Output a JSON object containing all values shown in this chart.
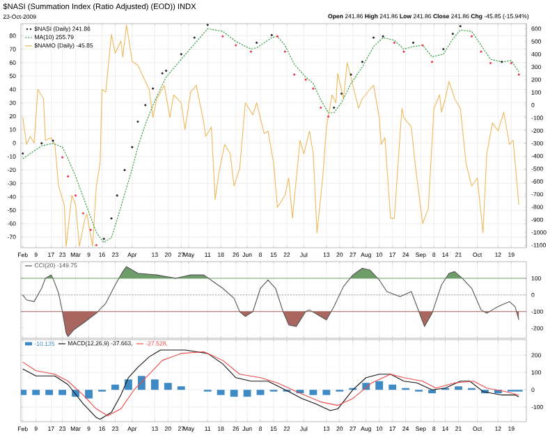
{
  "chart_data": [
    {
      "type": "line",
      "title": "$NASI (Summation Index (Ratio Adjusted) (EOD)) INDX",
      "subtitle": "23-Oct-2009",
      "annotations": [
        "**Open** 241.86 **High** 241.86 **Low** 241.86 **Close** 241.86 **Chg** -45.85 (-15.94%)"
      ],
      "xlim": [
        "2009-02-01",
        "2009-10-27"
      ],
      "xticks": [
        {
          "value": "2009-02-02",
          "label": "Feb"
        },
        {
          "value": "2009-02-09",
          "label": "9"
        },
        {
          "value": "2009-02-17",
          "label": "17"
        },
        {
          "value": "2009-02-23",
          "label": "23"
        },
        {
          "value": "2009-03-02",
          "label": "Mar"
        },
        {
          "value": "2009-03-09",
          "label": "9"
        },
        {
          "value": "2009-03-16",
          "label": "16"
        },
        {
          "value": "2009-03-23",
          "label": "23"
        },
        {
          "value": "2009-04-01",
          "label": "Apr"
        },
        {
          "value": "2009-04-13",
          "label": "13"
        },
        {
          "value": "2009-04-20",
          "label": "20"
        },
        {
          "value": "2009-04-27",
          "label": "27"
        },
        {
          "value": "2009-05-01",
          "label": "May"
        },
        {
          "value": "2009-05-11",
          "label": "11"
        },
        {
          "value": "2009-05-18",
          "label": "18"
        },
        {
          "value": "2009-05-26",
          "label": "26"
        },
        {
          "value": "2009-06-01",
          "label": "Jun"
        },
        {
          "value": "2009-06-08",
          "label": "8"
        },
        {
          "value": "2009-06-15",
          "label": "15"
        },
        {
          "value": "2009-06-22",
          "label": "22"
        },
        {
          "value": "2009-07-01",
          "label": "Jul"
        },
        {
          "value": "2009-07-13",
          "label": "13"
        },
        {
          "value": "2009-07-20",
          "label": "20"
        },
        {
          "value": "2009-07-27",
          "label": "27"
        },
        {
          "value": "2009-08-03",
          "label": "Aug"
        },
        {
          "value": "2009-08-10",
          "label": "10"
        },
        {
          "value": "2009-08-17",
          "label": "17"
        },
        {
          "value": "2009-08-24",
          "label": "24"
        },
        {
          "value": "2009-09-01",
          "label": "Sep"
        },
        {
          "value": "2009-09-08",
          "label": "8"
        },
        {
          "value": "2009-09-14",
          "label": "14"
        },
        {
          "value": "2009-09-21",
          "label": "21"
        },
        {
          "value": "2009-10-01",
          "label": "Oct"
        },
        {
          "value": "2009-10-12",
          "label": "12"
        },
        {
          "value": "2009-10-19",
          "label": "19"
        }
      ],
      "ylim": [
        -78,
        89
      ],
      "yticks": [
        -70,
        -60,
        -50,
        -40,
        -30,
        -20,
        -10,
        0,
        10,
        20,
        30,
        40,
        50,
        60,
        70,
        80
      ],
      "y2lim": [
        -1120,
        640
      ],
      "y2ticks": [
        -1100,
        -1000,
        -900,
        -800,
        -700,
        -600,
        -500,
        -400,
        -300,
        -200,
        -100,
        0,
        100,
        200,
        300,
        400,
        500,
        600
      ],
      "grid": true,
      "legend": "top left",
      "series": [
        {
          "name": "$NASI (Daily) 241.86",
          "type": "scatter",
          "marker": "circle",
          "axis": "y2",
          "color": "#222222",
          "x": [
            "2009-02-02",
            "2009-02-12",
            "2009-02-18",
            "2009-02-23",
            "2009-02-26",
            "2009-03-02",
            "2009-03-06",
            "2009-03-10",
            "2009-03-13",
            "2009-03-17",
            "2009-03-21",
            "2009-03-24",
            "2009-03-28",
            "2009-04-01",
            "2009-04-04",
            "2009-04-08",
            "2009-04-12",
            "2009-04-17",
            "2009-04-19",
            "2009-04-27",
            "2009-05-04",
            "2009-05-11",
            "2009-05-19",
            "2009-05-26",
            "2009-06-03",
            "2009-06-06",
            "2009-06-14",
            "2009-06-17",
            "2009-06-21",
            "2009-06-26",
            "2009-07-02",
            "2009-07-06",
            "2009-07-10",
            "2009-07-14",
            "2009-07-17",
            "2009-07-21",
            "2009-07-26",
            "2009-08-01",
            "2009-08-07",
            "2009-08-12",
            "2009-08-18",
            "2009-08-23",
            "2009-08-28",
            "2009-09-02",
            "2009-09-07",
            "2009-09-13",
            "2009-09-18",
            "2009-09-22",
            "2009-09-28",
            "2009-10-03",
            "2009-10-08",
            "2009-10-14",
            "2009-10-19",
            "2009-10-23"
          ],
          "values": [
            -380,
            -300,
            -280,
            -410,
            -560,
            -710,
            -850,
            -980,
            -1100,
            -1050,
            -890,
            -710,
            -510,
            -330,
            -130,
            0,
            130,
            250,
            270,
            400,
            530,
            630,
            540,
            470,
            420,
            490,
            550,
            540,
            420,
            240,
            200,
            130,
            -20,
            -90,
            -20,
            90,
            240,
            340,
            530,
            540,
            490,
            420,
            490,
            470,
            340,
            440,
            560,
            620,
            540,
            420,
            330,
            340,
            330,
            240
          ],
          "colors": [
            "#222222",
            "#222222",
            "#222222",
            "#e8324f",
            "#e8324f",
            "#e8324f",
            "#e8324f",
            "#e8324f",
            "#e8324f",
            "#222222",
            "#222222",
            "#222222",
            "#222222",
            "#222222",
            "#222222",
            "#222222",
            "#222222",
            "#222222",
            "#222222",
            "#222222",
            "#222222",
            "#222222",
            "#e8324f",
            "#e8324f",
            "#e8324f",
            "#222222",
            "#222222",
            "#e8324f",
            "#e8324f",
            "#e8324f",
            "#e8324f",
            "#e8324f",
            "#e8324f",
            "#e8324f",
            "#222222",
            "#222222",
            "#222222",
            "#222222",
            "#222222",
            "#222222",
            "#e8324f",
            "#e8324f",
            "#222222",
            "#e8324f",
            "#e8324f",
            "#222222",
            "#222222",
            "#222222",
            "#e8324f",
            "#e8324f",
            "#e8324f",
            "#222222",
            "#e8324f",
            "#e8324f"
          ]
        },
        {
          "name": "MA(10) 255.79",
          "type": "line",
          "line_style": "dashed",
          "axis": "y2",
          "color": "#2e9a3a",
          "x": [
            "2009-02-02",
            "2009-02-12",
            "2009-02-18",
            "2009-02-23",
            "2009-02-26",
            "2009-03-02",
            "2009-03-06",
            "2009-03-10",
            "2009-03-13",
            "2009-03-17",
            "2009-03-21",
            "2009-03-24",
            "2009-03-28",
            "2009-04-01",
            "2009-04-04",
            "2009-04-08",
            "2009-04-12",
            "2009-04-17",
            "2009-04-19",
            "2009-04-27",
            "2009-05-04",
            "2009-05-11",
            "2009-05-19",
            "2009-05-26",
            "2009-06-03",
            "2009-06-06",
            "2009-06-14",
            "2009-06-17",
            "2009-06-21",
            "2009-06-26",
            "2009-07-02",
            "2009-07-06",
            "2009-07-10",
            "2009-07-14",
            "2009-07-17",
            "2009-07-21",
            "2009-07-26",
            "2009-08-01",
            "2009-08-07",
            "2009-08-12",
            "2009-08-18",
            "2009-08-23",
            "2009-08-28",
            "2009-09-02",
            "2009-09-07",
            "2009-09-13",
            "2009-09-18",
            "2009-09-22",
            "2009-09-28",
            "2009-10-03",
            "2009-10-08",
            "2009-10-14",
            "2009-10-19",
            "2009-10-23"
          ],
          "values": [
            -420,
            -320,
            -300,
            -330,
            -420,
            -560,
            -720,
            -880,
            -1000,
            -1080,
            -1040,
            -900,
            -700,
            -500,
            -330,
            -150,
            0,
            160,
            220,
            360,
            480,
            600,
            580,
            500,
            440,
            450,
            530,
            540,
            470,
            320,
            220,
            170,
            40,
            -60,
            -60,
            20,
            170,
            300,
            460,
            530,
            510,
            440,
            460,
            470,
            380,
            400,
            520,
            590,
            580,
            470,
            360,
            340,
            350,
            260
          ]
        },
        {
          "name": "$NAMO (Daily) -45.85",
          "type": "line",
          "color": "#eeb85a",
          "x": [
            "2009-02-02",
            "2009-02-04",
            "2009-02-06",
            "2009-02-08",
            "2009-02-10",
            "2009-02-13",
            "2009-02-14",
            "2009-02-17",
            "2009-02-19",
            "2009-02-21",
            "2009-02-24",
            "2009-02-25",
            "2009-02-28",
            "2009-03-02",
            "2009-03-04",
            "2009-03-07",
            "2009-03-08",
            "2009-03-11",
            "2009-03-13",
            "2009-03-15",
            "2009-03-16",
            "2009-03-18",
            "2009-03-21",
            "2009-03-23",
            "2009-03-26",
            "2009-03-27",
            "2009-03-29",
            "2009-04-01",
            "2009-04-04",
            "2009-04-10",
            "2009-04-12",
            "2009-04-14",
            "2009-04-18",
            "2009-04-21",
            "2009-04-23",
            "2009-04-27",
            "2009-04-29",
            "2009-05-02",
            "2009-05-05",
            "2009-05-09",
            "2009-05-10",
            "2009-05-13",
            "2009-05-15",
            "2009-05-17",
            "2009-05-20",
            "2009-05-23",
            "2009-05-25",
            "2009-05-28",
            "2009-05-31",
            "2009-06-04",
            "2009-06-06",
            "2009-06-10",
            "2009-06-12",
            "2009-06-15",
            "2009-06-17",
            "2009-06-21",
            "2009-06-23",
            "2009-06-25",
            "2009-06-29",
            "2009-07-01",
            "2009-07-04",
            "2009-07-06",
            "2009-07-08",
            "2009-07-11",
            "2009-07-13",
            "2009-07-16",
            "2009-07-18",
            "2009-07-19",
            "2009-07-22",
            "2009-07-24",
            "2009-07-27",
            "2009-07-30",
            "2009-08-01",
            "2009-08-05",
            "2009-08-07",
            "2009-08-10",
            "2009-08-11",
            "2009-08-13",
            "2009-08-16",
            "2009-08-18",
            "2009-08-22",
            "2009-08-23",
            "2009-08-27",
            "2009-08-29",
            "2009-09-02",
            "2009-09-05",
            "2009-09-08",
            "2009-09-11",
            "2009-09-12",
            "2009-09-14",
            "2009-09-16",
            "2009-09-19",
            "2009-09-22",
            "2009-09-25",
            "2009-09-28",
            "2009-10-01",
            "2009-10-04",
            "2009-10-06",
            "2009-10-09",
            "2009-10-12",
            "2009-10-15",
            "2009-10-18",
            "2009-10-20",
            "2009-10-23"
          ],
          "values": [
            19,
            -1,
            5,
            0,
            40,
            33,
            2,
            4,
            -1,
            -32,
            -46,
            -77,
            -39,
            -46,
            -77,
            -56,
            -53,
            -77,
            -32,
            -15,
            40,
            38,
            81,
            67,
            76,
            64,
            88,
            61,
            58,
            40,
            19,
            33,
            43,
            19,
            36,
            30,
            10,
            38,
            43,
            15,
            5,
            12,
            -42,
            -22,
            -1,
            -8,
            -32,
            -19,
            30,
            21,
            30,
            7,
            9,
            -15,
            -48,
            -39,
            -26,
            -56,
            2,
            -8,
            9,
            -8,
            -67,
            -26,
            12,
            36,
            30,
            52,
            33,
            60,
            43,
            26,
            33,
            40,
            43,
            19,
            -1,
            4,
            -56,
            -56,
            26,
            19,
            12,
            -15,
            -60,
            -49,
            26,
            36,
            23,
            33,
            46,
            33,
            26,
            -15,
            -32,
            -26,
            -67,
            -8,
            15,
            9,
            23,
            -1,
            2,
            -46
          ]
        }
      ]
    },
    {
      "type": "line",
      "tick_labels": "y",
      "xlim": [
        "2009-02-01",
        "2009-10-27"
      ],
      "xticks": [
        {
          "value": "2009-02-02",
          "label": null
        },
        {
          "value": "2009-02-09",
          "label": null
        },
        {
          "value": "2009-02-17",
          "label": null
        },
        {
          "value": "2009-02-23",
          "label": null
        },
        {
          "value": "2009-03-02",
          "label": null
        },
        {
          "value": "2009-03-09",
          "label": null
        },
        {
          "value": "2009-03-16",
          "label": null
        },
        {
          "value": "2009-03-23",
          "label": null
        },
        {
          "value": "2009-04-01",
          "label": null
        },
        {
          "value": "2009-04-13",
          "label": null
        },
        {
          "value": "2009-04-20",
          "label": null
        },
        {
          "value": "2009-04-27",
          "label": null
        },
        {
          "value": "2009-05-01",
          "label": null
        },
        {
          "value": "2009-05-11",
          "label": null
        },
        {
          "value": "2009-05-18",
          "label": null
        },
        {
          "value": "2009-05-26",
          "label": null
        },
        {
          "value": "2009-06-01",
          "label": null
        },
        {
          "value": "2009-06-08",
          "label": null
        },
        {
          "value": "2009-06-15",
          "label": null
        },
        {
          "value": "2009-06-22",
          "label": null
        },
        {
          "value": "2009-07-01",
          "label": null
        },
        {
          "value": "2009-07-13",
          "label": null
        },
        {
          "value": "2009-07-20",
          "label": null
        },
        {
          "value": "2009-07-27",
          "label": null
        },
        {
          "value": "2009-08-03",
          "label": null
        },
        {
          "value": "2009-08-10",
          "label": null
        },
        {
          "value": "2009-08-17",
          "label": null
        },
        {
          "value": "2009-08-24",
          "label": null
        },
        {
          "value": "2009-09-01",
          "label": null
        },
        {
          "value": "2009-09-08",
          "label": null
        },
        {
          "value": "2009-09-14",
          "label": null
        },
        {
          "value": "2009-09-21",
          "label": null
        },
        {
          "value": "2009-10-01",
          "label": null
        },
        {
          "value": "2009-10-12",
          "label": null
        },
        {
          "value": "2009-10-19",
          "label": null
        }
      ],
      "ylim": [
        -260,
        200
      ],
      "yticks": [
        -200,
        -100,
        0,
        100
      ],
      "grid": "x",
      "legend": "top left",
      "ref_lines": [
        {
          "axis": "y",
          "value": 100,
          "color": "#6e9d69"
        },
        {
          "axis": "y",
          "value": -100,
          "color": "#a9665f"
        },
        {
          "axis": "y",
          "value": 0,
          "line_style": "dashed"
        }
      ],
      "series": [
        {
          "name": "CCI(20) -149.75",
          "color": "#555555",
          "x": [
            "2009-02-02",
            "2009-02-04",
            "2009-02-08",
            "2009-02-12",
            "2009-02-14",
            "2009-02-17",
            "2009-02-18",
            "2009-02-21",
            "2009-02-23",
            "2009-02-25",
            "2009-02-26",
            "2009-03-01",
            "2009-03-06",
            "2009-03-13",
            "2009-03-18",
            "2009-03-23",
            "2009-03-27",
            "2009-03-29",
            "2009-04-04",
            "2009-04-14",
            "2009-04-24",
            "2009-05-02",
            "2009-05-09",
            "2009-05-14",
            "2009-05-19",
            "2009-05-25",
            "2009-05-28",
            "2009-05-31",
            "2009-06-04",
            "2009-06-08",
            "2009-06-12",
            "2009-06-16",
            "2009-06-20",
            "2009-06-23",
            "2009-06-27",
            "2009-07-02",
            "2009-07-04",
            "2009-07-10",
            "2009-07-13",
            "2009-07-17",
            "2009-07-22",
            "2009-07-27",
            "2009-08-01",
            "2009-08-05",
            "2009-08-10",
            "2009-08-14",
            "2009-08-21",
            "2009-08-27",
            "2009-08-30",
            "2009-09-03",
            "2009-09-07",
            "2009-09-12",
            "2009-09-16",
            "2009-09-19",
            "2009-09-23",
            "2009-09-28",
            "2009-10-03",
            "2009-10-06",
            "2009-10-12",
            "2009-10-18",
            "2009-10-21",
            "2009-10-23"
          ],
          "values": [
            0,
            -30,
            -40,
            40,
            100,
            120,
            100,
            10,
            -100,
            -230,
            -250,
            -210,
            -170,
            -110,
            -50,
            60,
            140,
            170,
            130,
            120,
            100,
            120,
            120,
            80,
            40,
            -20,
            -100,
            -130,
            -100,
            40,
            90,
            40,
            -100,
            -180,
            -190,
            -100,
            -90,
            -130,
            -150,
            -70,
            50,
            120,
            160,
            150,
            90,
            20,
            -10,
            20,
            -70,
            -190,
            -110,
            60,
            130,
            140,
            100,
            40,
            -90,
            -110,
            -70,
            -40,
            -70,
            -150
          ]
        }
      ]
    },
    {
      "type": "line",
      "xlim": [
        "2009-02-01",
        "2009-10-27"
      ],
      "xticks": [
        {
          "value": "2009-02-02",
          "label": "Feb"
        },
        {
          "value": "2009-02-09",
          "label": "9"
        },
        {
          "value": "2009-02-17",
          "label": "17"
        },
        {
          "value": "2009-02-23",
          "label": "23"
        },
        {
          "value": "2009-03-02",
          "label": "Mar"
        },
        {
          "value": "2009-03-09",
          "label": "9"
        },
        {
          "value": "2009-03-16",
          "label": "16"
        },
        {
          "value": "2009-03-23",
          "label": "23"
        },
        {
          "value": "2009-04-01",
          "label": "Apr"
        },
        {
          "value": "2009-04-13",
          "label": "13"
        },
        {
          "value": "2009-04-20",
          "label": "20"
        },
        {
          "value": "2009-04-27",
          "label": "27"
        },
        {
          "value": "2009-05-01",
          "label": "May"
        },
        {
          "value": "2009-05-11",
          "label": "11"
        },
        {
          "value": "2009-05-18",
          "label": "18"
        },
        {
          "value": "2009-05-26",
          "label": "26"
        },
        {
          "value": "2009-06-01",
          "label": "Jun"
        },
        {
          "value": "2009-06-08",
          "label": "8"
        },
        {
          "value": "2009-06-15",
          "label": "15"
        },
        {
          "value": "2009-06-22",
          "label": "22"
        },
        {
          "value": "2009-07-01",
          "label": "Jul"
        },
        {
          "value": "2009-07-13",
          "label": "13"
        },
        {
          "value": "2009-07-20",
          "label": "20"
        },
        {
          "value": "2009-07-27",
          "label": "27"
        },
        {
          "value": "2009-08-03",
          "label": "Aug"
        },
        {
          "value": "2009-08-10",
          "label": "10"
        },
        {
          "value": "2009-08-17",
          "label": "17"
        },
        {
          "value": "2009-08-24",
          "label": "24"
        },
        {
          "value": "2009-09-01",
          "label": "Sep"
        },
        {
          "value": "2009-09-08",
          "label": "8"
        },
        {
          "value": "2009-09-14",
          "label": "14"
        },
        {
          "value": "2009-09-21",
          "label": "21"
        },
        {
          "value": "2009-10-01",
          "label": "Oct"
        },
        {
          "value": "2009-10-12",
          "label": "12"
        },
        {
          "value": "2009-10-19",
          "label": "19"
        }
      ],
      "ylim": [
        -184,
        290
      ],
      "yticks": [
        -100,
        0,
        100,
        200
      ],
      "grid": true,
      "legend": "top left",
      "series": [
        {
          "name": "-10.135",
          "type": "bar",
          "color": "#3d8ac4",
          "x": [
            "2009-02-02",
            "2009-02-09",
            "2009-02-16",
            "2009-02-23",
            "2009-03-02",
            "2009-03-09",
            "2009-03-16",
            "2009-03-23",
            "2009-03-30",
            "2009-04-06",
            "2009-04-13",
            "2009-04-20",
            "2009-04-27",
            "2009-05-04",
            "2009-05-11",
            "2009-05-18",
            "2009-05-25",
            "2009-06-01",
            "2009-06-08",
            "2009-06-15",
            "2009-06-22",
            "2009-06-29",
            "2009-07-06",
            "2009-07-13",
            "2009-07-20",
            "2009-07-27",
            "2009-08-03",
            "2009-08-10",
            "2009-08-17",
            "2009-08-24",
            "2009-08-31",
            "2009-09-07",
            "2009-09-14",
            "2009-09-21",
            "2009-09-28",
            "2009-10-05",
            "2009-10-12",
            "2009-10-19",
            "2009-10-23"
          ],
          "values": [
            -30,
            -30,
            -30,
            -30,
            -40,
            -50,
            -10,
            30,
            60,
            80,
            60,
            40,
            20,
            0,
            -10,
            -30,
            -40,
            -40,
            -30,
            -10,
            -10,
            -20,
            -30,
            -30,
            -10,
            10,
            40,
            50,
            30,
            10,
            -10,
            -20,
            10,
            20,
            10,
            -20,
            -20,
            -10,
            -10
          ]
        },
        {
          "name": "MACD(12,26,9) -37.663,",
          "color": "#111111",
          "x": [
            "2009-02-02",
            "2009-02-09",
            "2009-02-19",
            "2009-02-26",
            "2009-03-06",
            "2009-03-13",
            "2009-03-15",
            "2009-03-21",
            "2009-03-26",
            "2009-03-30",
            "2009-04-04",
            "2009-04-10",
            "2009-04-16",
            "2009-04-29",
            "2009-05-11",
            "2009-05-19",
            "2009-05-26",
            "2009-06-03",
            "2009-06-12",
            "2009-06-23",
            "2009-06-30",
            "2009-07-07",
            "2009-07-15",
            "2009-07-19",
            "2009-07-27",
            "2009-08-03",
            "2009-08-10",
            "2009-08-16",
            "2009-08-23",
            "2009-08-30",
            "2009-09-07",
            "2009-09-14",
            "2009-09-22",
            "2009-09-27",
            "2009-10-04",
            "2009-10-14",
            "2009-10-21",
            "2009-10-23"
          ],
          "values": [
            120,
            80,
            80,
            30,
            -80,
            -160,
            -170,
            -130,
            -30,
            70,
            130,
            190,
            230,
            230,
            210,
            150,
            70,
            50,
            50,
            -10,
            -50,
            -80,
            -120,
            -110,
            0,
            70,
            90,
            90,
            50,
            40,
            0,
            10,
            50,
            50,
            -10,
            -30,
            -30,
            -40
          ]
        },
        {
          "name": "-27.528,",
          "color": "#f04848",
          "x": [
            "2009-02-02",
            "2009-02-09",
            "2009-02-19",
            "2009-02-26",
            "2009-03-06",
            "2009-03-13",
            "2009-03-19",
            "2009-03-26",
            "2009-04-02",
            "2009-04-10",
            "2009-04-17",
            "2009-04-27",
            "2009-05-09",
            "2009-05-19",
            "2009-05-28",
            "2009-06-08",
            "2009-06-17",
            "2009-06-27",
            "2009-07-10",
            "2009-07-19",
            "2009-07-27",
            "2009-08-06",
            "2009-08-16",
            "2009-08-23",
            "2009-09-02",
            "2009-09-09",
            "2009-09-19",
            "2009-09-29",
            "2009-10-06",
            "2009-10-16",
            "2009-10-23"
          ],
          "values": [
            160,
            110,
            90,
            50,
            -30,
            -110,
            -150,
            -110,
            0,
            90,
            170,
            210,
            220,
            170,
            90,
            70,
            40,
            -10,
            -70,
            -90,
            -50,
            40,
            90,
            70,
            50,
            10,
            40,
            50,
            10,
            -10,
            -30
          ]
        }
      ]
    }
  ]
}
